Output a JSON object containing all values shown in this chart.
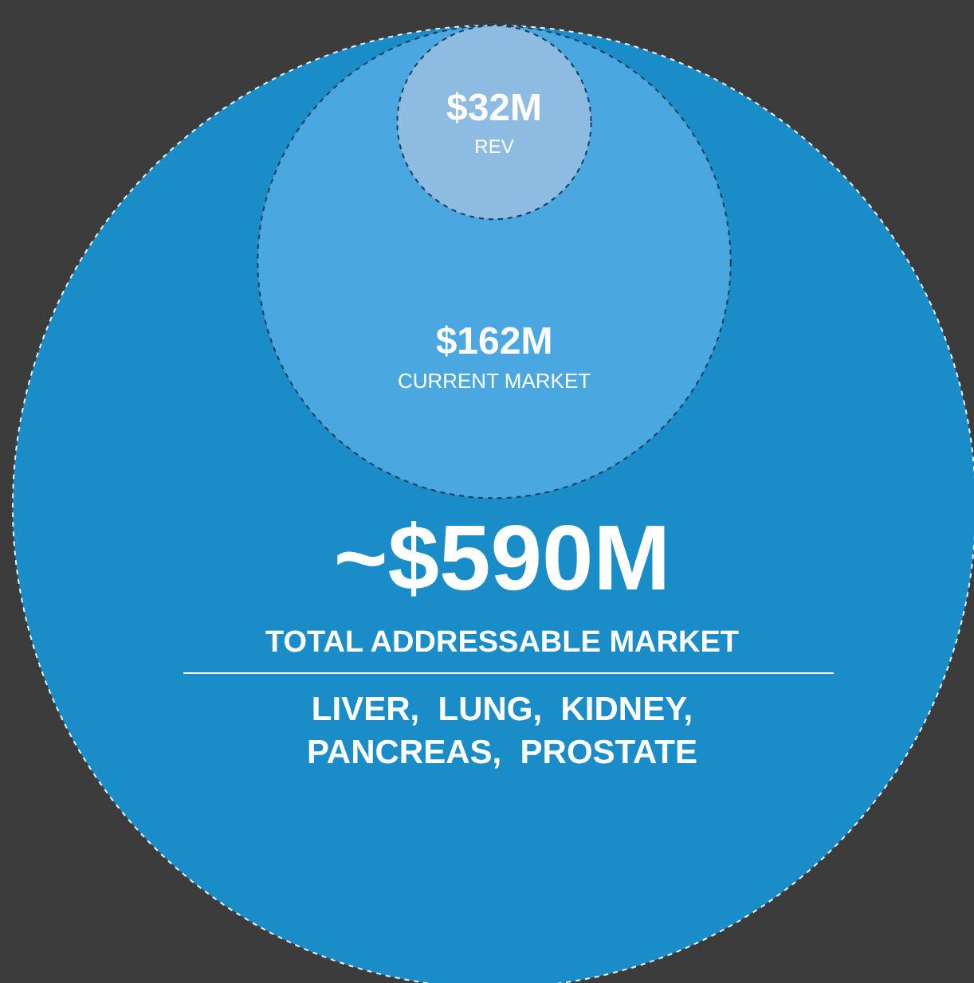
{
  "chart_data": {
    "type": "other",
    "categories": [
      "TOTAL ADDRESSABLE MARKET",
      "CURRENT MARKET",
      "REV"
    ],
    "values": [
      590,
      162,
      32
    ],
    "value_labels": [
      "~$590M",
      "$162M",
      "$32M"
    ],
    "colors": [
      "#1a8dc9",
      "#4aa7df",
      "#8dbbe2"
    ],
    "annotations": [
      "LIVER, LUNG, KIDNEY, PANCREAS, PROSTATE"
    ]
  }
}
